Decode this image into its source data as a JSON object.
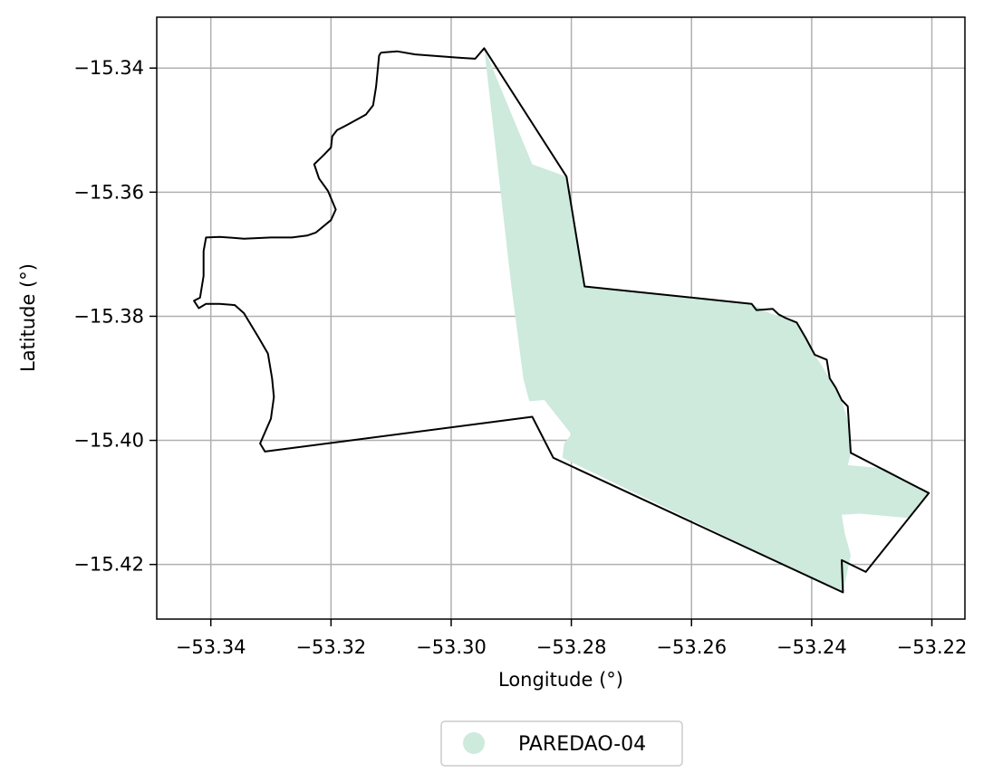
{
  "chart_data": {
    "type": "map",
    "xlabel": "Longitude (°)",
    "ylabel": "Latitude (°)",
    "xlim": [
      -53.349,
      -53.2145
    ],
    "ylim": [
      -15.4288,
      -15.3318
    ],
    "grid": true,
    "x_ticks": [
      -53.34,
      -53.32,
      -53.3,
      -53.28,
      -53.26,
      -53.24,
      -53.22
    ],
    "y_ticks": [
      -15.34,
      -15.36,
      -15.38,
      -15.4,
      -15.42
    ],
    "x_tick_labels": [
      "−53.34",
      "−53.32",
      "−53.30",
      "−53.28",
      "−53.26",
      "−53.24",
      "−53.22"
    ],
    "y_tick_labels": [
      "−15.34",
      "−15.36",
      "−15.38",
      "−15.40",
      "−15.42"
    ],
    "legend": {
      "position": "bottom-center",
      "entries": [
        {
          "label": "PAREDAO-04",
          "color": "#cdeadc"
        }
      ]
    },
    "fill_color": "#cdeadc",
    "boundary_color": "#000000",
    "filled_area_name": "PAREDAO-04",
    "filled_area": [
      [
        -53.2945,
        -15.3368
      ],
      [
        -53.2865,
        -15.3555
      ],
      [
        -53.2808,
        -15.3575
      ],
      [
        -53.2778,
        -15.3752
      ],
      [
        -53.25,
        -15.378
      ],
      [
        -53.247,
        -15.3795
      ],
      [
        -53.2425,
        -15.381
      ],
      [
        -53.2395,
        -15.3862
      ],
      [
        -53.237,
        -15.39
      ],
      [
        -53.235,
        -15.3935
      ],
      [
        -53.2338,
        -15.3975
      ],
      [
        -53.2335,
        -15.402
      ],
      [
        -53.234,
        -15.404
      ],
      [
        -53.228,
        -15.4045
      ],
      [
        -53.2205,
        -15.4085
      ],
      [
        -53.224,
        -15.4125
      ],
      [
        -53.232,
        -15.4118
      ],
      [
        -53.235,
        -15.412
      ],
      [
        -53.2345,
        -15.415
      ],
      [
        -53.2335,
        -15.4185
      ],
      [
        -53.2348,
        -15.4245
      ],
      [
        -53.25,
        -15.4175
      ],
      [
        -53.27,
        -15.4082
      ],
      [
        -53.2815,
        -15.4028
      ],
      [
        -53.2812,
        -15.4005
      ],
      [
        -53.28,
        -15.399
      ],
      [
        -53.2845,
        -15.3935
      ],
      [
        -53.287,
        -15.3937
      ],
      [
        -53.288,
        -15.39
      ],
      [
        -53.29,
        -15.375
      ],
      [
        -53.2945,
        -15.3368
      ]
    ],
    "boundary": [
      [
        -53.3117,
        -15.3375
      ],
      [
        -53.309,
        -15.3373
      ],
      [
        -53.306,
        -15.3378
      ],
      [
        -53.299,
        -15.3383
      ],
      [
        -53.296,
        -15.3385
      ],
      [
        -53.2945,
        -15.3368
      ],
      [
        -53.2808,
        -15.3575
      ],
      [
        -53.2778,
        -15.3752
      ],
      [
        -53.25,
        -15.378
      ],
      [
        -53.2492,
        -15.379
      ],
      [
        -53.2465,
        -15.3788
      ],
      [
        -53.2455,
        -15.3797
      ],
      [
        -53.2443,
        -15.3803
      ],
      [
        -53.2425,
        -15.381
      ],
      [
        -53.241,
        -15.3835
      ],
      [
        -53.2395,
        -15.3862
      ],
      [
        -53.2375,
        -15.387
      ],
      [
        -53.237,
        -15.39
      ],
      [
        -53.236,
        -15.3915
      ],
      [
        -53.235,
        -15.3935
      ],
      [
        -53.234,
        -15.3945
      ],
      [
        -53.2338,
        -15.3975
      ],
      [
        -53.2335,
        -15.402
      ],
      [
        -53.2205,
        -15.4085
      ],
      [
        -53.231,
        -15.4212
      ],
      [
        -53.235,
        -15.4193
      ],
      [
        -53.2348,
        -15.4245
      ],
      [
        -53.283,
        -15.4028
      ],
      [
        -53.2865,
        -15.3962
      ],
      [
        -53.331,
        -15.4018
      ],
      [
        -53.3318,
        -15.4005
      ],
      [
        -53.33,
        -15.3965
      ],
      [
        -53.3295,
        -15.393
      ],
      [
        -53.3298,
        -15.39
      ],
      [
        -53.3305,
        -15.386
      ],
      [
        -53.332,
        -15.3835
      ],
      [
        -53.3345,
        -15.3795
      ],
      [
        -53.336,
        -15.3782
      ],
      [
        -53.3385,
        -15.378
      ],
      [
        -53.3408,
        -15.378
      ],
      [
        -53.342,
        -15.3787
      ],
      [
        -53.3428,
        -15.3775
      ],
      [
        -53.3418,
        -15.377
      ],
      [
        -53.3412,
        -15.3735
      ],
      [
        -53.3412,
        -15.3695
      ],
      [
        -53.3408,
        -15.3673
      ],
      [
        -53.3385,
        -15.3672
      ],
      [
        -53.3345,
        -15.3675
      ],
      [
        -53.33,
        -15.3673
      ],
      [
        -53.3265,
        -15.3673
      ],
      [
        -53.324,
        -15.367
      ],
      [
        -53.3225,
        -15.3665
      ],
      [
        -53.32,
        -15.3645
      ],
      [
        -53.3192,
        -15.3628
      ],
      [
        -53.3205,
        -15.3598
      ],
      [
        -53.322,
        -15.3578
      ],
      [
        -53.3228,
        -15.3555
      ],
      [
        -53.3212,
        -15.354
      ],
      [
        -53.32,
        -15.3528
      ],
      [
        -53.3198,
        -15.351
      ],
      [
        -53.319,
        -15.35
      ],
      [
        -53.317,
        -15.349
      ],
      [
        -53.3142,
        -15.3475
      ],
      [
        -53.313,
        -15.346
      ],
      [
        -53.3125,
        -15.343
      ],
      [
        -53.3122,
        -15.34
      ],
      [
        -53.312,
        -15.338
      ],
      [
        -53.3117,
        -15.3375
      ]
    ]
  }
}
